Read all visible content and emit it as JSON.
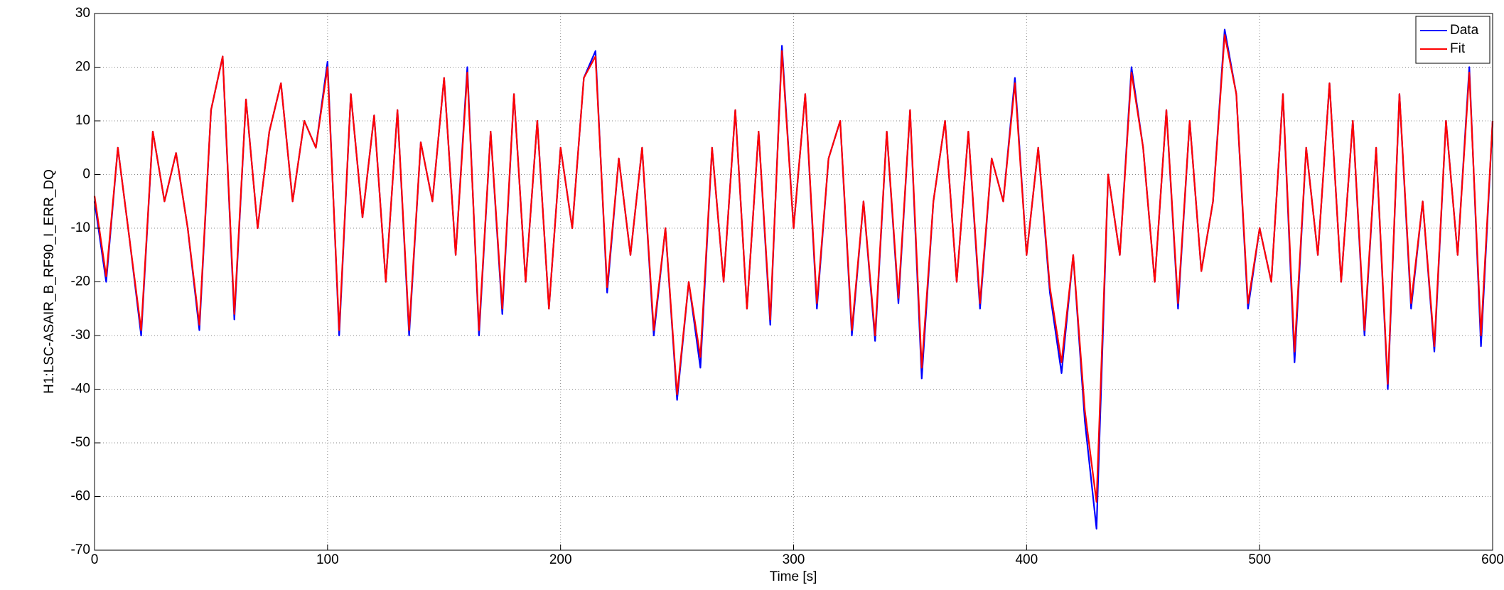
{
  "chart_data": {
    "type": "line",
    "xlabel": "Time [s]",
    "ylabel": "H1:LSC-ASAIR_B_RF90_I_ERR_DQ",
    "x": [
      0,
      5,
      10,
      15,
      20,
      25,
      30,
      35,
      40,
      45,
      50,
      55,
      60,
      65,
      70,
      75,
      80,
      85,
      90,
      95,
      100,
      105,
      110,
      115,
      120,
      125,
      130,
      135,
      140,
      145,
      150,
      155,
      160,
      165,
      170,
      175,
      180,
      185,
      190,
      195,
      200,
      205,
      210,
      215,
      220,
      225,
      230,
      235,
      240,
      245,
      250,
      255,
      260,
      265,
      270,
      275,
      280,
      285,
      290,
      295,
      300,
      305,
      310,
      315,
      320,
      325,
      330,
      335,
      340,
      345,
      350,
      355,
      360,
      365,
      370,
      375,
      380,
      385,
      390,
      395,
      400,
      405,
      410,
      415,
      420,
      425,
      430,
      435,
      440,
      445,
      450,
      455,
      460,
      465,
      470,
      475,
      480,
      485,
      490,
      495,
      500,
      505,
      510,
      515,
      520,
      525,
      530,
      535,
      540,
      545,
      550,
      555,
      560,
      565,
      570,
      575,
      580,
      585,
      590,
      595,
      600
    ],
    "series": [
      {
        "name": "Data",
        "color": "#0000ff",
        "values": [
          -5,
          -20,
          5,
          -12,
          -30,
          8,
          -5,
          4,
          -10,
          -29,
          12,
          22,
          -27,
          14,
          -10,
          8,
          17,
          -5,
          10,
          5,
          21,
          -30,
          15,
          -8,
          11,
          -20,
          12,
          -30,
          6,
          -5,
          18,
          -15,
          20,
          -30,
          8,
          -26,
          15,
          -20,
          10,
          -25,
          5,
          -10,
          18,
          23,
          -22,
          3,
          -15,
          5,
          -30,
          -10,
          -42,
          -20,
          -36,
          5,
          -20,
          12,
          -25,
          8,
          -28,
          24,
          -10,
          15,
          -25,
          3,
          10,
          -30,
          -5,
          -31,
          8,
          -24,
          12,
          -38,
          -5,
          10,
          -20,
          8,
          -25,
          3,
          -5,
          18,
          -15,
          5,
          -22,
          -37,
          -15,
          -46,
          -66,
          0,
          -15,
          20,
          5,
          -20,
          12,
          -25,
          10,
          -18,
          -5,
          27,
          15,
          -25,
          -10,
          -20,
          15,
          -35,
          5,
          -15,
          17,
          -20,
          10,
          -30,
          5,
          -40,
          15,
          -25,
          -5,
          -33,
          10,
          -15,
          20,
          -32,
          10
        ]
      },
      {
        "name": "Fit",
        "color": "#ff0000",
        "values": [
          -4,
          -19,
          5,
          -12,
          -29,
          8,
          -5,
          4,
          -10,
          -28,
          12,
          22,
          -26,
          14,
          -10,
          8,
          17,
          -5,
          10,
          5,
          20,
          -29,
          15,
          -8,
          11,
          -20,
          12,
          -29,
          6,
          -5,
          18,
          -15,
          19,
          -29,
          8,
          -25,
          15,
          -20,
          10,
          -25,
          5,
          -10,
          18,
          22,
          -21,
          3,
          -15,
          5,
          -29,
          -10,
          -41,
          -20,
          -34,
          5,
          -20,
          12,
          -25,
          8,
          -27,
          23,
          -10,
          15,
          -24,
          3,
          10,
          -29,
          -5,
          -30,
          8,
          -23,
          12,
          -36,
          -5,
          10,
          -20,
          8,
          -24,
          3,
          -5,
          17,
          -15,
          5,
          -21,
          -35,
          -15,
          -44,
          -61,
          0,
          -15,
          19,
          5,
          -20,
          12,
          -24,
          10,
          -18,
          -5,
          26,
          15,
          -24,
          -10,
          -20,
          15,
          -33,
          5,
          -15,
          17,
          -20,
          10,
          -29,
          5,
          -39,
          15,
          -24,
          -5,
          -32,
          10,
          -15,
          19,
          -30,
          10
        ]
      }
    ],
    "xlim": [
      0,
      600
    ],
    "xticks": [
      0,
      100,
      200,
      300,
      400,
      500,
      600
    ],
    "ylim": [
      -70,
      30
    ],
    "yticks": [
      -70,
      -60,
      -50,
      -40,
      -30,
      -20,
      -10,
      0,
      10,
      20,
      30
    ],
    "grid": true,
    "legend": "upper right"
  }
}
